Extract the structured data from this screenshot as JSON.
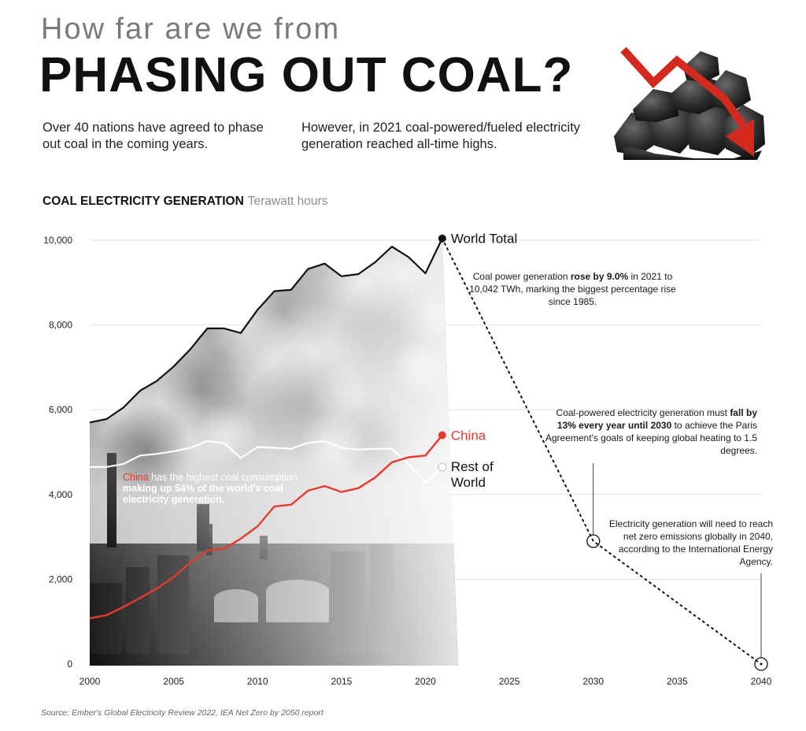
{
  "header": {
    "kicker": "How far are we from",
    "headline": "PHASING OUT COAL?",
    "intro_left": "Over 40 nations have agreed to phase out coal in the coming years.",
    "intro_right": "However, in 2021 coal-powered/fueled electricity generation reached all-time highs."
  },
  "chart_title": {
    "main": "COAL ELECTRICITY GENERATION",
    "unit": "Terawatt hours"
  },
  "annotations": {
    "rise_pre": "Coal power generation ",
    "rise_bold": "rose by 9.0%",
    "rise_post": " in 2021 to 10,042 TWh, marking the biggest percentage rise since 1985.",
    "paris_pre": "Coal-powered electricity generation must ",
    "paris_bold": "fall by 13% every year until 2030",
    "paris_post": " to achieve the Paris Agreement's goals of keeping global heating to 1.5 degrees.",
    "net_zero": "Electricity generation will need to reach net zero emissions globally in 2040, according to the International Energy Agency.",
    "china_red": "China",
    "china_text": " has the highest coal consumption, ",
    "china_bold": "making up 54% of the world's coal electricity generation",
    "china_end": "."
  },
  "source": "Source: Ember's Global Electricity Review 2022, IEA Net Zero by 2050 report",
  "colors": {
    "china": "#e63a2b",
    "world": "#111111",
    "rest": "#ffffff",
    "gridline": "#e2e2e2",
    "arrow": "#d42a1e"
  },
  "chart_data": {
    "type": "line",
    "xlim": [
      2000,
      2040
    ],
    "ylim": [
      0,
      10000
    ],
    "x_ticks": [
      2000,
      2005,
      2010,
      2015,
      2020,
      2025,
      2030,
      2035,
      2040
    ],
    "y_ticks": [
      {
        "value": 0,
        "label": "0"
      },
      {
        "value": 2000,
        "label": "2,000"
      },
      {
        "value": 4000,
        "label": "4,000"
      },
      {
        "value": 6000,
        "label": "6,000"
      },
      {
        "value": 8000,
        "label": "8,000"
      },
      {
        "value": 10000,
        "label": "10,000"
      }
    ],
    "grid": true,
    "series": [
      {
        "name": "World Total",
        "x": [
          2000,
          2001,
          2002,
          2003,
          2004,
          2005,
          2006,
          2007,
          2008,
          2009,
          2010,
          2011,
          2012,
          2013,
          2014,
          2015,
          2016,
          2017,
          2018,
          2019,
          2020,
          2021
        ],
        "values": [
          5700,
          5780,
          6050,
          6450,
          6680,
          7020,
          7430,
          7920,
          7920,
          7810,
          8360,
          8800,
          8830,
          9320,
          9450,
          9150,
          9200,
          9480,
          9850,
          9600,
          9220,
          10042
        ]
      },
      {
        "name": "China",
        "x": [
          2000,
          2001,
          2002,
          2003,
          2004,
          2005,
          2006,
          2007,
          2008,
          2009,
          2010,
          2011,
          2012,
          2013,
          2014,
          2015,
          2016,
          2017,
          2018,
          2019,
          2020,
          2021
        ],
        "values": [
          1080,
          1150,
          1350,
          1560,
          1780,
          2050,
          2400,
          2680,
          2720,
          2960,
          3250,
          3720,
          3760,
          4090,
          4200,
          4060,
          4150,
          4400,
          4760,
          4880,
          4920,
          5400
        ]
      },
      {
        "name": "Rest of World",
        "x": [
          2000,
          2001,
          2002,
          2003,
          2004,
          2005,
          2006,
          2007,
          2008,
          2009,
          2010,
          2011,
          2012,
          2013,
          2014,
          2015,
          2016,
          2017,
          2018,
          2019,
          2020,
          2021
        ],
        "values": [
          4650,
          4650,
          4720,
          4920,
          4960,
          5020,
          5100,
          5260,
          5220,
          4860,
          5120,
          5100,
          5080,
          5220,
          5260,
          5100,
          5060,
          5080,
          5080,
          4720,
          4280,
          4650
        ]
      }
    ],
    "projection": {
      "x": [
        2021,
        2030,
        2040
      ],
      "values": [
        10042,
        2900,
        0
      ]
    }
  }
}
